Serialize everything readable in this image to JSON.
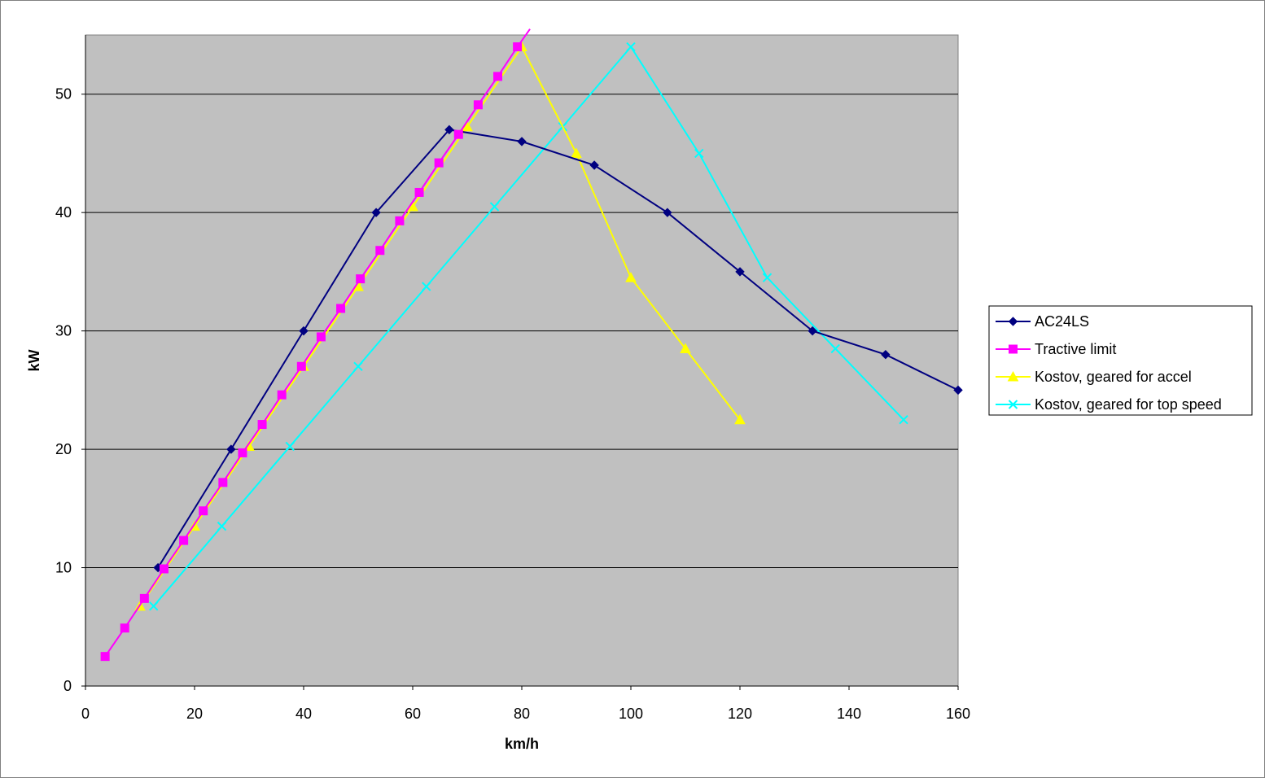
{
  "chart_data": {
    "type": "line",
    "xlabel": "km/h",
    "ylabel": "kW",
    "xlim": [
      0,
      160
    ],
    "ylim": [
      0,
      55
    ],
    "x_ticks": [
      0,
      20,
      40,
      60,
      80,
      100,
      120,
      140,
      160
    ],
    "y_ticks": [
      0,
      10,
      20,
      30,
      40,
      50
    ],
    "plot_background": "#c0c0c0",
    "grid": "horizontal",
    "legend_position": "right",
    "series": [
      {
        "name": "AC24LS",
        "color": "#000080",
        "marker": "diamond",
        "points": [
          [
            13.3,
            10
          ],
          [
            26.7,
            20
          ],
          [
            40,
            30
          ],
          [
            53.3,
            40
          ],
          [
            66.7,
            47
          ],
          [
            80,
            46
          ],
          [
            93.3,
            44
          ],
          [
            106.7,
            40
          ],
          [
            120,
            35
          ],
          [
            133.3,
            30
          ],
          [
            146.7,
            28
          ],
          [
            160,
            25
          ]
        ]
      },
      {
        "name": "Tractive limit",
        "color": "#ff00ff",
        "marker": "square",
        "line_extend_to": [
          81.5,
          55.5
        ],
        "points": [
          [
            3.6,
            2.5
          ],
          [
            7.2,
            4.9
          ],
          [
            10.8,
            7.4
          ],
          [
            14.4,
            9.9
          ],
          [
            18,
            12.3
          ],
          [
            21.6,
            14.8
          ],
          [
            25.2,
            17.2
          ],
          [
            28.8,
            19.7
          ],
          [
            32.4,
            22.1
          ],
          [
            36,
            24.6
          ],
          [
            39.6,
            27.0
          ],
          [
            43.2,
            29.5
          ],
          [
            46.8,
            31.9
          ],
          [
            50.4,
            34.4
          ],
          [
            54,
            36.8
          ],
          [
            57.6,
            39.3
          ],
          [
            61.2,
            41.7
          ],
          [
            64.8,
            44.2
          ],
          [
            68.4,
            46.6
          ],
          [
            72,
            49.1
          ],
          [
            75.6,
            51.5
          ],
          [
            79.2,
            54.0
          ]
        ]
      },
      {
        "name": "Kostov, geared for accel",
        "color": "#ffff00",
        "marker": "triangle",
        "points": [
          [
            10,
            6.75
          ],
          [
            20,
            13.5
          ],
          [
            30,
            20.25
          ],
          [
            40,
            27
          ],
          [
            50,
            33.75
          ],
          [
            60,
            40.5
          ],
          [
            70,
            47.25
          ],
          [
            80,
            54
          ],
          [
            90,
            45
          ],
          [
            100,
            34.5
          ],
          [
            110,
            28.5
          ],
          [
            120,
            22.5
          ]
        ]
      },
      {
        "name": "Kostov, geared for top speed",
        "color": "#00ffff",
        "marker": "x",
        "points": [
          [
            12.5,
            6.75
          ],
          [
            25,
            13.5
          ],
          [
            37.5,
            20.25
          ],
          [
            50,
            27
          ],
          [
            62.5,
            33.75
          ],
          [
            75,
            40.5
          ],
          [
            87.5,
            47.25
          ],
          [
            100,
            54
          ],
          [
            112.5,
            45
          ],
          [
            125,
            34.5
          ],
          [
            137.5,
            28.5
          ],
          [
            150,
            22.5
          ]
        ]
      }
    ]
  }
}
